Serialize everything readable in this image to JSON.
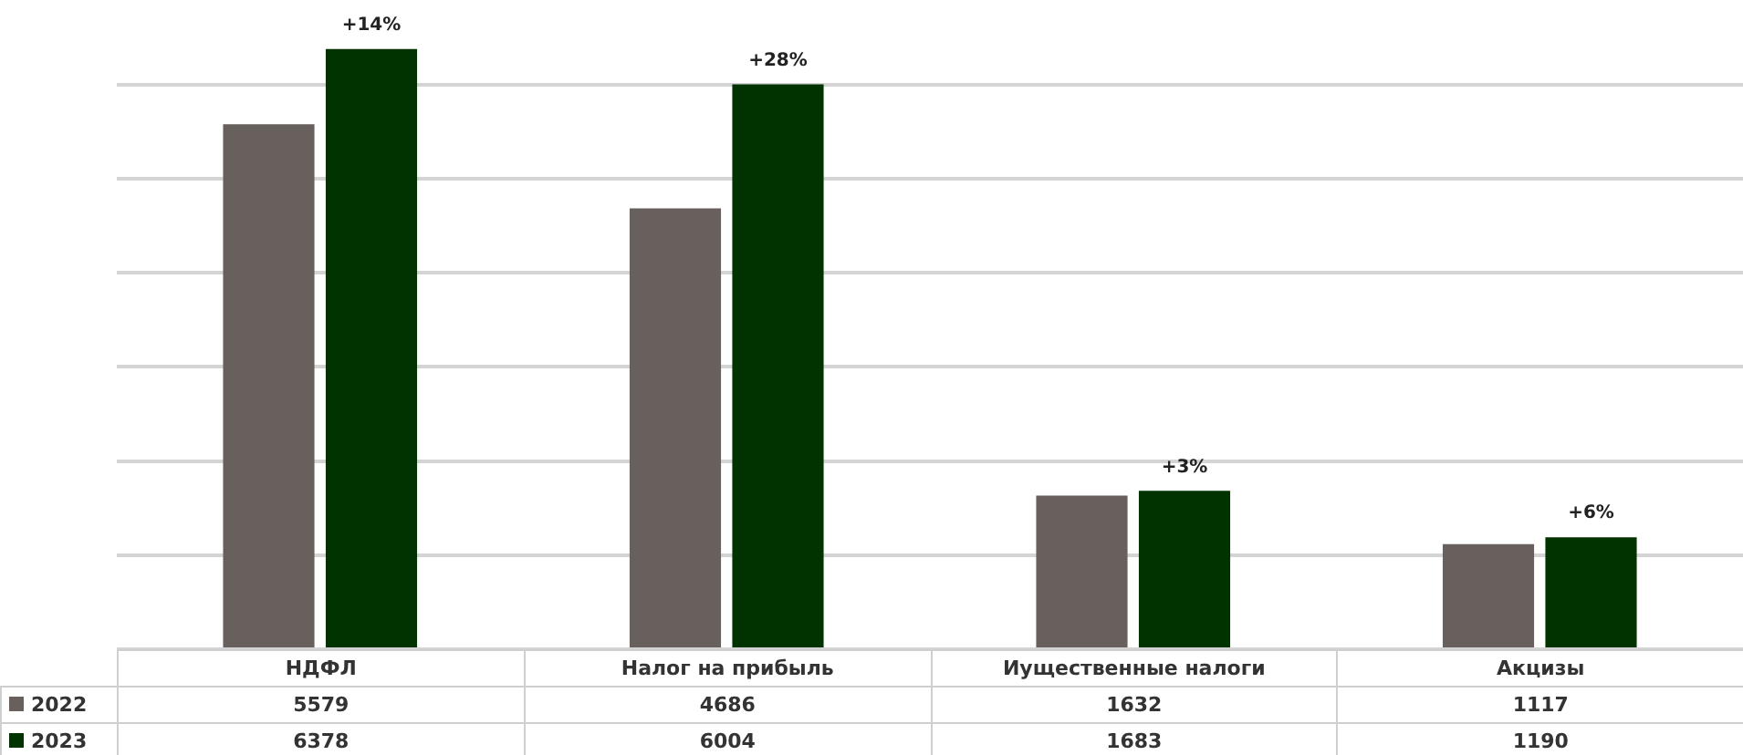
{
  "chart_data": {
    "type": "bar",
    "categories": [
      "НДФЛ",
      "Налог на прибыль",
      "Иущественные налоги",
      "Акцизы"
    ],
    "series": [
      {
        "name": "2022",
        "color": "#67605d",
        "values": [
          5579,
          4686,
          1632,
          1117
        ]
      },
      {
        "name": "2023",
        "color": "#003300",
        "values": [
          6378,
          6004,
          1683,
          1190
        ]
      }
    ],
    "ylim": [
      0,
      6900
    ],
    "yticks": [
      {
        "value": 0,
        "label": null
      },
      {
        "value": 1000,
        "label": null
      },
      {
        "value": 2000,
        "label": null
      },
      {
        "value": 3000,
        "label": null
      },
      {
        "value": 4000,
        "label": null
      },
      {
        "value": 5000,
        "label": null
      },
      {
        "value": 6000,
        "label": null
      }
    ],
    "grid": "y",
    "tick_labels": "x",
    "legend": "bottom left",
    "data_labels": true,
    "annotations": [
      {
        "text": "+14%",
        "x": "НДФЛ",
        "y": 6378
      },
      {
        "text": "+28%",
        "x": "Налог на прибыль",
        "y": 6004
      },
      {
        "text": "+3%",
        "x": "Иущественные налоги",
        "y": 1683
      },
      {
        "text": "+6%",
        "x": "Акцизы",
        "y": 1190
      }
    ]
  }
}
